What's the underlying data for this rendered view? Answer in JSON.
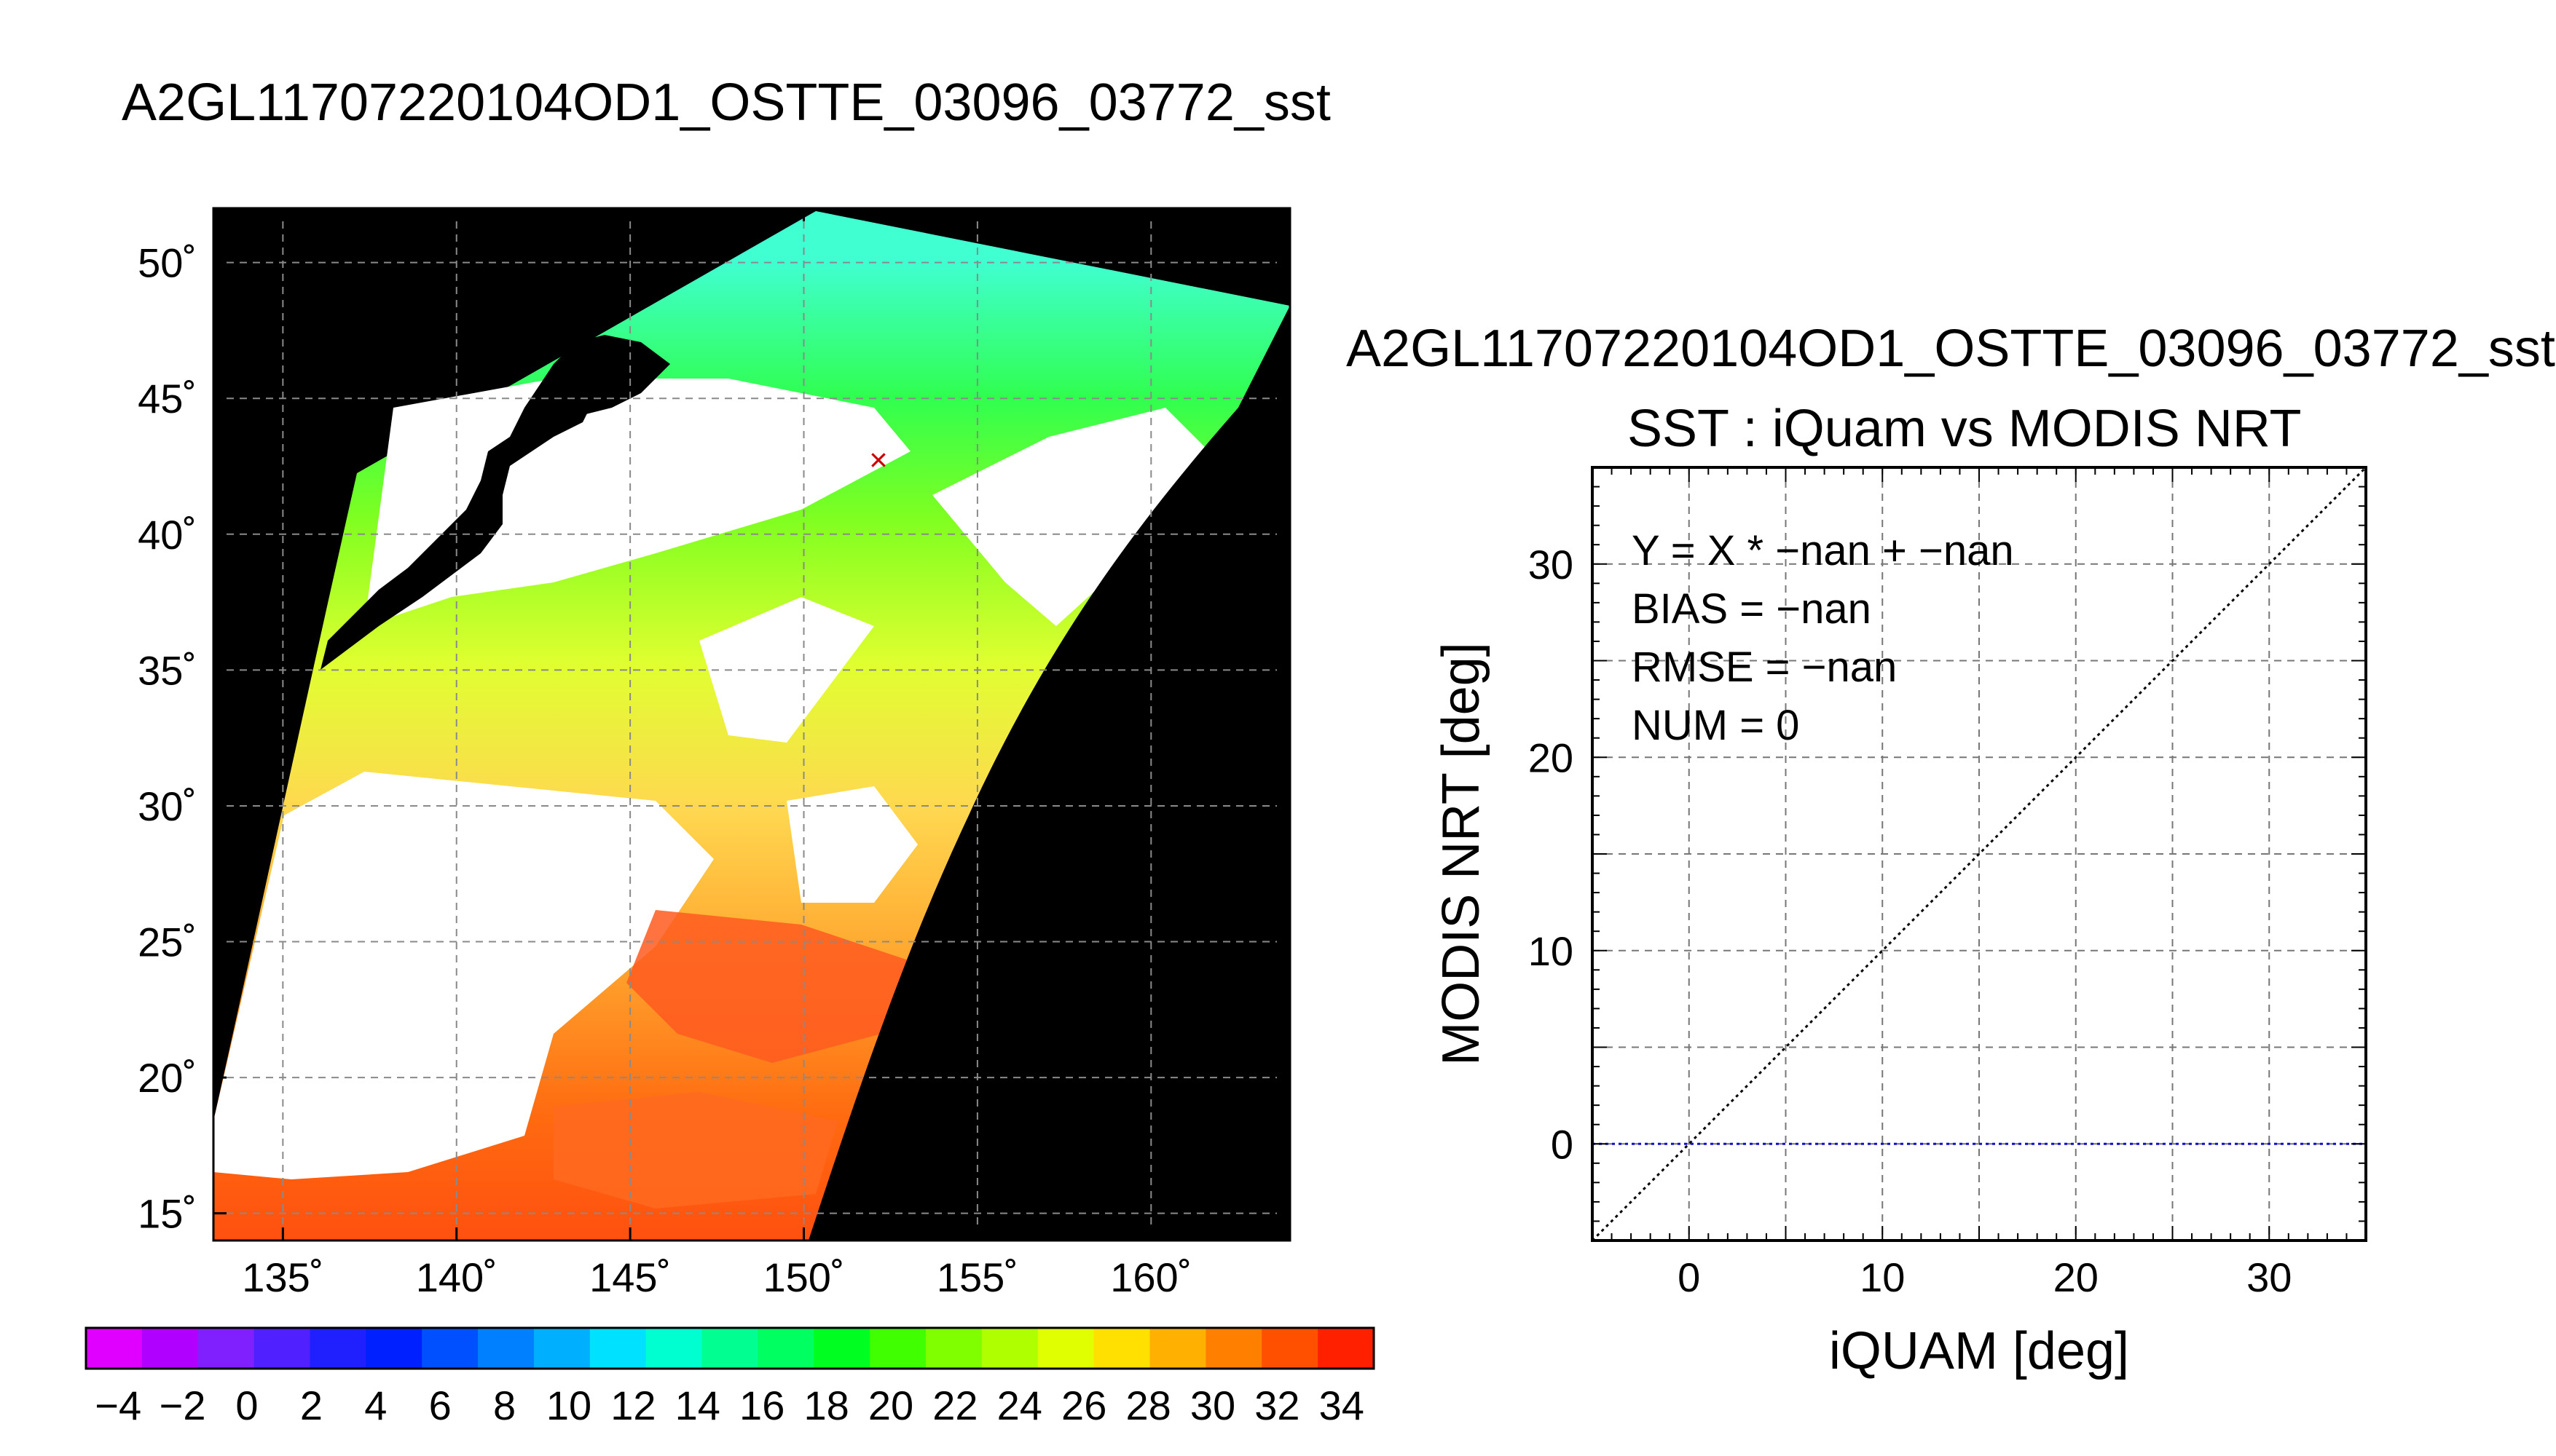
{
  "page_title": "A2GL11707220104OD1_OSTTE_03096_03772_sst",
  "chart_data": [
    {
      "type": "heatmap",
      "kind": "sst-map",
      "x_ticks": [
        {
          "value": 135,
          "label": "135˚"
        },
        {
          "value": 140,
          "label": "140˚"
        },
        {
          "value": 145,
          "label": "145˚"
        },
        {
          "value": 150,
          "label": "150˚"
        },
        {
          "value": 155,
          "label": "155˚"
        },
        {
          "value": 160,
          "label": "160˚"
        }
      ],
      "y_ticks": [
        {
          "value": 15,
          "label": "15˚"
        },
        {
          "value": 20,
          "label": "20˚"
        },
        {
          "value": 25,
          "label": "25˚"
        },
        {
          "value": 30,
          "label": "30˚"
        },
        {
          "value": 35,
          "label": "35˚"
        },
        {
          "value": 40,
          "label": "40˚"
        },
        {
          "value": 45,
          "label": "45˚"
        },
        {
          "value": 50,
          "label": "50˚"
        }
      ],
      "xlim": [
        133,
        164
      ],
      "ylim": [
        14,
        52
      ],
      "grid": true,
      "marker": {
        "lon": 152,
        "lat": 43,
        "symbol": "×",
        "color": "#cc0000"
      },
      "colorbar": {
        "range": [
          -5,
          35
        ],
        "labels": [
          "−4",
          "−2",
          "0",
          "2",
          "4",
          "6",
          "8",
          "10",
          "12",
          "14",
          "16",
          "18",
          "20",
          "22",
          "24",
          "26",
          "28",
          "30",
          "32",
          "34"
        ],
        "label_values": [
          -4,
          -2,
          0,
          2,
          4,
          6,
          8,
          10,
          12,
          14,
          16,
          18,
          20,
          22,
          24,
          26,
          28,
          30,
          32,
          34
        ],
        "colors": [
          "#e000ff",
          "#b000ff",
          "#8020ff",
          "#5020ff",
          "#2020ff",
          "#0020ff",
          "#0050ff",
          "#0080ff",
          "#00b0ff",
          "#00e0ff",
          "#00ffd0",
          "#00ff90",
          "#00ff60",
          "#00ff20",
          "#40ff00",
          "#80ff00",
          "#b0ff00",
          "#e0ff00",
          "#ffe000",
          "#ffb000",
          "#ff8000",
          "#ff5000",
          "#ff2000"
        ]
      }
    },
    {
      "type": "scatter",
      "title": "A2GL11707220104OD1_OSTTE_03096_03772_sst",
      "subtitle": "SST : iQuam vs MODIS NRT",
      "xlabel": "iQUAM [deg]",
      "ylabel": "MODIS NRT [deg]",
      "xlim": [
        -5,
        35
      ],
      "ylim": [
        -5,
        35
      ],
      "x_ticks": [
        0,
        10,
        20,
        30
      ],
      "y_ticks": [
        0,
        10,
        20,
        30
      ],
      "grid": true,
      "stats": [
        "Y = X * −nan + −nan",
        "BIAS = −nan",
        "RMSE = −nan",
        "NUM = 0"
      ],
      "reference_lines": [
        {
          "name": "1:1",
          "style": "dotted",
          "color": "#000000",
          "from": [
            -5,
            -5
          ],
          "to": [
            35,
            35
          ]
        },
        {
          "name": "zero",
          "style": "dotted",
          "color": "#1010cc",
          "from": [
            -5,
            0
          ],
          "to": [
            35,
            0
          ]
        }
      ],
      "points": []
    }
  ]
}
